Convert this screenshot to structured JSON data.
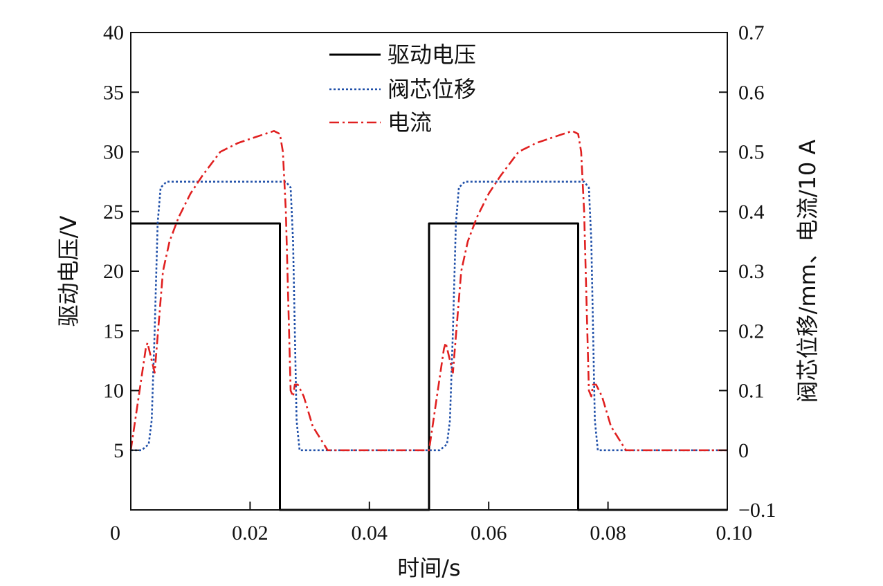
{
  "chart_data": {
    "type": "line",
    "xlabel": "时间/s",
    "ylabel_left": "驱动电压/V",
    "ylabel_right": "阀芯位移/mm、电流/10 A",
    "xlim": [
      0,
      0.1
    ],
    "ylim_left": [
      0,
      40
    ],
    "ylim_right": [
      -0.1,
      0.7
    ],
    "x_ticks": [
      "0",
      "0.02",
      "0.04",
      "0.06",
      "0.08",
      "0.10"
    ],
    "x_tick_values": [
      0,
      0.02,
      0.04,
      0.06,
      0.08,
      0.1
    ],
    "y_left_ticks": [
      "5",
      "10",
      "15",
      "20",
      "25",
      "30",
      "35",
      "40"
    ],
    "y_left_tick_values": [
      5,
      10,
      15,
      20,
      25,
      30,
      35,
      40
    ],
    "y_right_ticks": [
      "−0.1",
      "0",
      "0.1",
      "0.2",
      "0.3",
      "0.4",
      "0.5",
      "0.6",
      "0.7"
    ],
    "y_right_tick_values": [
      -0.1,
      0,
      0.1,
      0.2,
      0.3,
      0.4,
      0.5,
      0.6,
      0.7
    ],
    "grid": false,
    "legend_position": "top-center",
    "series": [
      {
        "name": "驱动电压",
        "axis": "left",
        "color": "#000000",
        "dash": "solid",
        "x": [
          0,
          0.025,
          0.025,
          0.05,
          0.05,
          0.075,
          0.075,
          0.1
        ],
        "y": [
          24,
          24,
          0,
          0,
          24,
          24,
          0,
          0
        ]
      },
      {
        "name": "阀芯位移",
        "axis": "right",
        "color": "#1f4fa8",
        "dash": "dotted",
        "x": [
          0,
          0.0018,
          0.003,
          0.0035,
          0.004,
          0.0045,
          0.005,
          0.006,
          0.026,
          0.0268,
          0.0272,
          0.0278,
          0.0283,
          0.0285,
          0.05,
          0.0518,
          0.053,
          0.0535,
          0.054,
          0.0545,
          0.055,
          0.056,
          0.076,
          0.0768,
          0.0772,
          0.0778,
          0.0783,
          0.0785,
          0.1
        ],
        "y": [
          0,
          0,
          0.01,
          0.05,
          0.2,
          0.38,
          0.44,
          0.45,
          0.45,
          0.44,
          0.35,
          0.05,
          0,
          0,
          0,
          0,
          0.01,
          0.05,
          0.2,
          0.38,
          0.44,
          0.45,
          0.45,
          0.44,
          0.35,
          0.05,
          0,
          0,
          0
        ]
      },
      {
        "name": "电流",
        "axis": "right",
        "color": "#e02020",
        "dash": "dashdot",
        "x": [
          0,
          0.0025,
          0.0028,
          0.004,
          0.0054,
          0.0065,
          0.008,
          0.01,
          0.012,
          0.015,
          0.018,
          0.021,
          0.024,
          0.025,
          0.0255,
          0.026,
          0.0268,
          0.0272,
          0.0275,
          0.028,
          0.029,
          0.0305,
          0.033,
          0.05,
          0.0525,
          0.0528,
          0.054,
          0.0554,
          0.0565,
          0.058,
          0.06,
          0.062,
          0.065,
          0.068,
          0.071,
          0.074,
          0.075,
          0.0755,
          0.076,
          0.0768,
          0.0772,
          0.0775,
          0.078,
          0.079,
          0.0805,
          0.083,
          0.1
        ],
        "y": [
          0,
          0.17,
          0.18,
          0.13,
          0.3,
          0.35,
          0.39,
          0.43,
          0.46,
          0.5,
          0.515,
          0.525,
          0.535,
          0.53,
          0.5,
          0.4,
          0.1,
          0.09,
          0.11,
          0.11,
          0.09,
          0.04,
          0,
          0,
          0.17,
          0.18,
          0.13,
          0.3,
          0.35,
          0.39,
          0.43,
          0.46,
          0.5,
          0.515,
          0.525,
          0.535,
          0.53,
          0.5,
          0.4,
          0.1,
          0.09,
          0.11,
          0.11,
          0.09,
          0.04,
          0,
          0
        ]
      }
    ]
  }
}
